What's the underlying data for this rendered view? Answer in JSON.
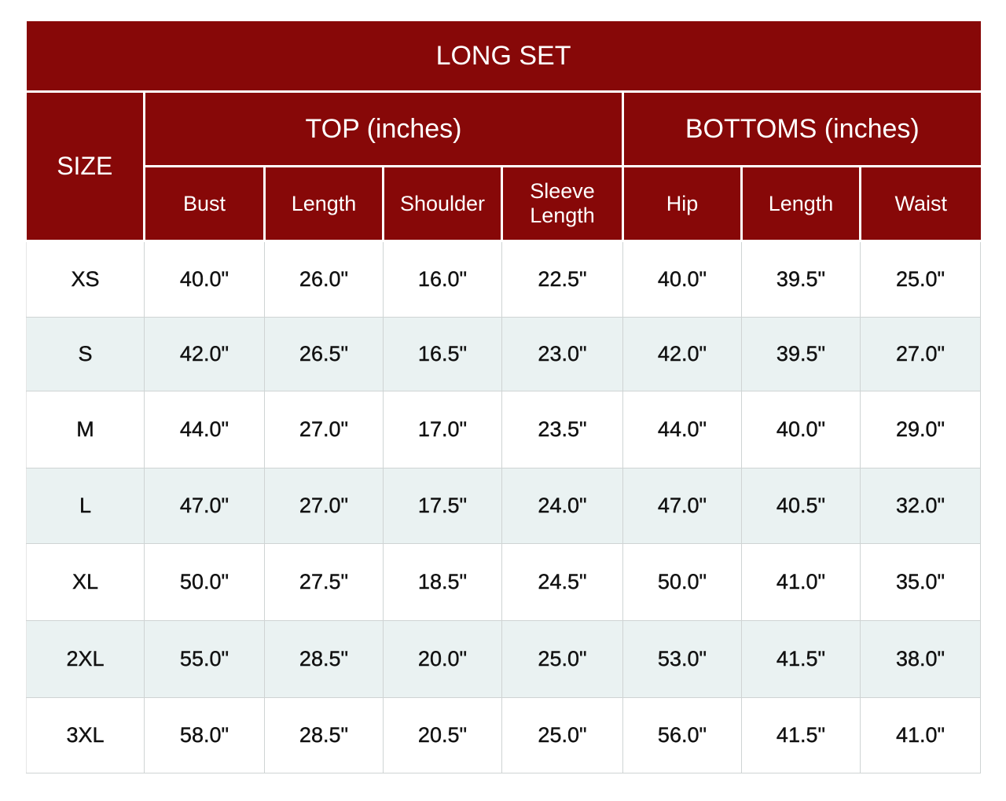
{
  "title": "LONG SET",
  "size_header": "SIZE",
  "groups": {
    "top": "TOP (inches)",
    "bottoms": "BOTTOMS (inches)"
  },
  "columns": [
    "Bust",
    "Length",
    "Shoulder",
    "Sleeve Length",
    "Hip",
    "Length",
    "Waist"
  ],
  "rows": [
    {
      "size": "XS",
      "values": [
        "40.0\"",
        "26.0\"",
        "16.0\"",
        "22.5\"",
        "40.0\"",
        "39.5\"",
        "25.0\""
      ]
    },
    {
      "size": "S",
      "values": [
        "42.0\"",
        "26.5\"",
        "16.5\"",
        "23.0\"",
        "42.0\"",
        "39.5\"",
        "27.0\""
      ]
    },
    {
      "size": "M",
      "values": [
        "44.0\"",
        "27.0\"",
        "17.0\"",
        "23.5\"",
        "44.0\"",
        "40.0\"",
        "29.0\""
      ]
    },
    {
      "size": "L",
      "values": [
        "47.0\"",
        "27.0\"",
        "17.5\"",
        "24.0\"",
        "47.0\"",
        "40.5\"",
        "32.0\""
      ]
    },
    {
      "size": "XL",
      "values": [
        "50.0\"",
        "27.5\"",
        "18.5\"",
        "24.5\"",
        "50.0\"",
        "41.0\"",
        "35.0\""
      ]
    },
    {
      "size": "2XL",
      "values": [
        "55.0\"",
        "28.5\"",
        "20.0\"",
        "25.0\"",
        "53.0\"",
        "41.5\"",
        "38.0\""
      ]
    },
    {
      "size": "3XL",
      "values": [
        "58.0\"",
        "28.5\"",
        "20.5\"",
        "25.0\"",
        "56.0\"",
        "41.5\"",
        "41.0\""
      ]
    }
  ],
  "colors": {
    "header_bg": "#870808",
    "header_text": "#ffffff",
    "alt_row": "#eaf2f2"
  }
}
